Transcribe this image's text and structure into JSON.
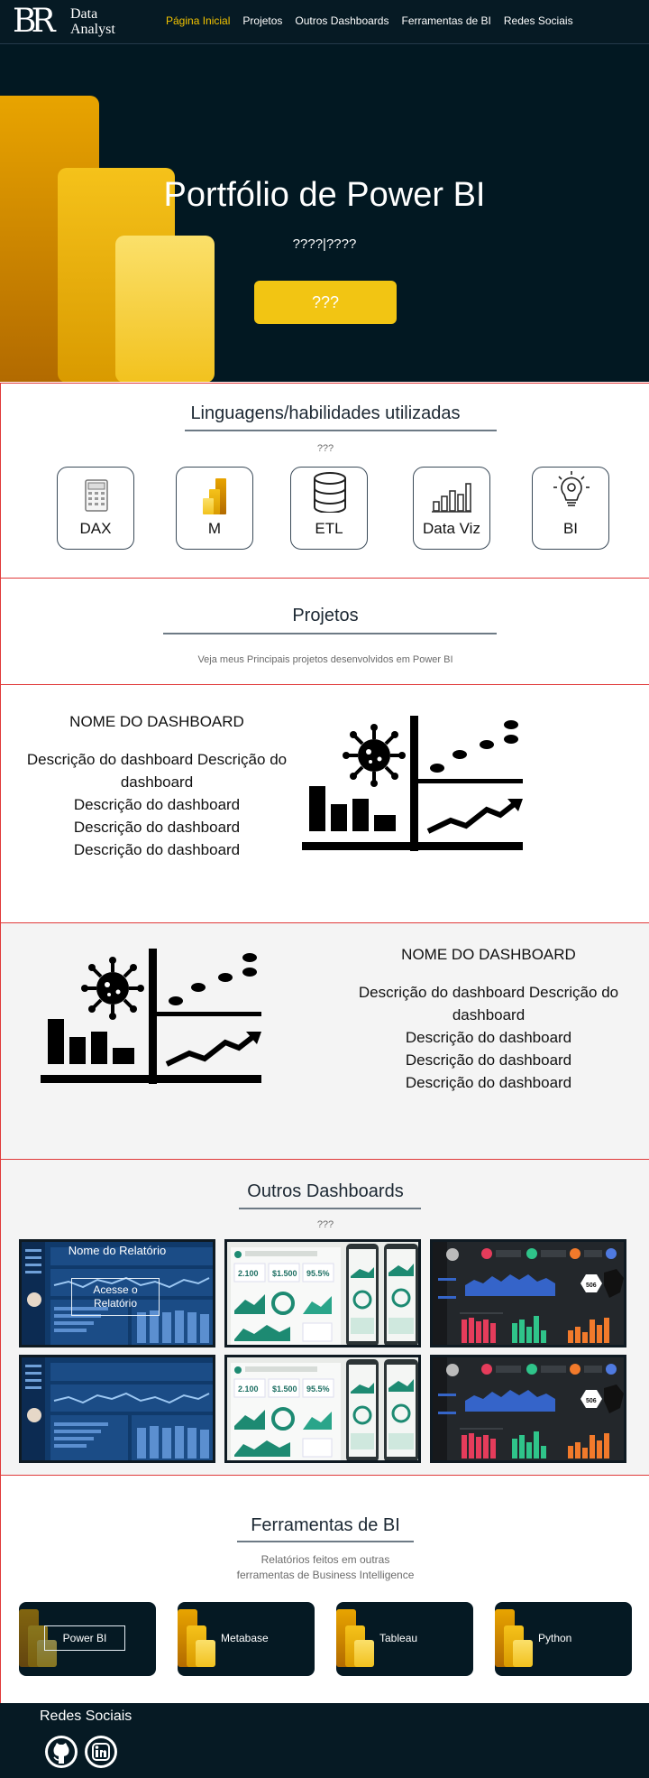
{
  "nav": {
    "logo_monogram": "BR",
    "logo_line1": "Data",
    "logo_line2": "Analyst",
    "links": [
      {
        "label": "Página Inicial",
        "active": true
      },
      {
        "label": "Projetos",
        "active": false
      },
      {
        "label": "Outros Dashboards",
        "active": false
      },
      {
        "label": "Ferramentas de BI",
        "active": false
      },
      {
        "label": "Redes Sociais",
        "active": false
      }
    ]
  },
  "hero": {
    "title": "Portfólio de Power BI",
    "subtitle": "????|????",
    "button_label": "???",
    "icon": "power-bi-logo"
  },
  "skills": {
    "title": "Linguagens/habilidades  utilizadas",
    "subtitle": "???",
    "items": [
      {
        "label": "DAX",
        "icon": "calculator-icon"
      },
      {
        "label": "M",
        "icon": "power-bi-icon"
      },
      {
        "label": "ETL",
        "icon": "database-icon"
      },
      {
        "label": "Data Viz",
        "icon": "bar-chart-icon"
      },
      {
        "label": "BI",
        "icon": "lightbulb-gear-icon"
      }
    ]
  },
  "projects": {
    "title": "Projetos",
    "description": "Veja meus Principais projetos desenvolvidos  em Power BI"
  },
  "dashboards": [
    {
      "name": "NOME DO DASHBOARD",
      "description_lines": [
        "Descrição do dashboard Descrição do dashboard",
        "Descrição do dashboard",
        "Descrição do dashboard",
        "Descrição do dashboard"
      ],
      "icon": "virus-chart-icon"
    },
    {
      "name": "NOME DO DASHBOARD",
      "description_lines": [
        "Descrição do dashboard Descrição do dashboard",
        "Descrição do dashboard",
        "Descrição do dashboard",
        "Descrição do dashboard"
      ],
      "icon": "virus-chart-icon"
    }
  ],
  "other_dashboards": {
    "title": "Outros Dashboards",
    "subtitle": "???",
    "overlay_title": "Nome do Relatório",
    "overlay_button": "Acesse o Relatório"
  },
  "bi_tools": {
    "title": "Ferramentas de BI",
    "description_line1": "Relatórios feitos em outras",
    "description_line2": "ferramentas de Business  Intelligence",
    "items": [
      {
        "label": "Power BI"
      },
      {
        "label": "Metabase"
      },
      {
        "label": "Tableau"
      },
      {
        "label": "Python"
      }
    ]
  },
  "footer": {
    "title": "Redes Sociais",
    "icons": [
      "github-icon",
      "linkedin-icon"
    ]
  },
  "colors": {
    "dark_navy": "#061a24",
    "accent_yellow": "#f2c513",
    "section_border": "#e03a3a"
  }
}
